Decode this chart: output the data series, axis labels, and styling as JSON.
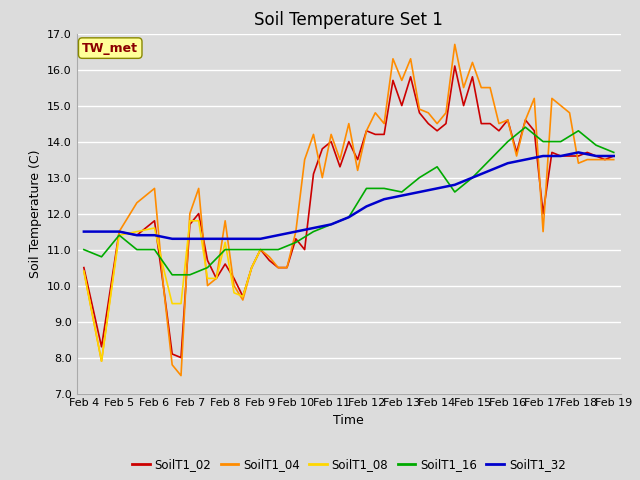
{
  "title": "Soil Temperature Set 1",
  "xlabel": "Time",
  "ylabel": "Soil Temperature (C)",
  "ylim": [
    7.0,
    17.0
  ],
  "yticks": [
    7.0,
    8.0,
    9.0,
    10.0,
    11.0,
    12.0,
    13.0,
    14.0,
    15.0,
    16.0,
    17.0
  ],
  "background_color": "#dcdcdc",
  "plot_bg_color": "#dcdcdc",
  "grid_color": "#ffffff",
  "annotation_label": "TW_met",
  "annotation_color": "#8b0000",
  "annotation_bg": "#ffff99",
  "series": {
    "SoilT1_02": {
      "color": "#cc0000",
      "linewidth": 1.2,
      "x": [
        0,
        0.5,
        1,
        1.5,
        2,
        2.25,
        2.5,
        2.75,
        3,
        3.25,
        3.5,
        3.75,
        4,
        4.25,
        4.5,
        4.75,
        5,
        5.25,
        5.5,
        5.75,
        6,
        6.25,
        6.5,
        6.75,
        7,
        7.25,
        7.5,
        7.75,
        8,
        8.25,
        8.5,
        8.75,
        9,
        9.25,
        9.5,
        9.75,
        10,
        10.25,
        10.5,
        10.75,
        11,
        11.25,
        11.5,
        11.75,
        12,
        12.25,
        12.5,
        12.75,
        13,
        13.25,
        13.5,
        13.75,
        14,
        14.25,
        14.5,
        14.75,
        15
      ],
      "y": [
        10.5,
        8.3,
        11.5,
        11.4,
        11.8,
        10.0,
        8.1,
        8.0,
        11.7,
        12.0,
        10.7,
        10.2,
        10.6,
        10.2,
        9.7,
        10.5,
        11.0,
        10.7,
        10.5,
        10.5,
        11.3,
        11.0,
        13.1,
        13.8,
        14.0,
        13.3,
        14.0,
        13.5,
        14.3,
        14.2,
        14.2,
        15.7,
        15.0,
        15.8,
        14.8,
        14.5,
        14.3,
        14.5,
        16.1,
        15.0,
        15.8,
        14.5,
        14.5,
        14.3,
        14.6,
        13.7,
        14.6,
        14.3,
        12.0,
        13.7,
        13.6,
        13.6,
        13.6,
        13.7,
        13.6,
        13.5,
        13.6
      ]
    },
    "SoilT1_04": {
      "color": "#ff8c00",
      "linewidth": 1.2,
      "x": [
        0,
        0.5,
        1,
        1.5,
        2,
        2.25,
        2.5,
        2.75,
        3,
        3.25,
        3.5,
        3.75,
        4,
        4.25,
        4.5,
        4.75,
        5,
        5.25,
        5.5,
        5.75,
        6,
        6.25,
        6.5,
        6.75,
        7,
        7.25,
        7.5,
        7.75,
        8,
        8.25,
        8.5,
        8.75,
        9,
        9.25,
        9.5,
        9.75,
        10,
        10.25,
        10.5,
        10.75,
        11,
        11.25,
        11.5,
        11.75,
        12,
        12.25,
        12.5,
        12.75,
        13,
        13.25,
        13.5,
        13.75,
        14,
        14.25,
        14.5,
        14.75,
        15
      ],
      "y": [
        10.4,
        7.9,
        11.5,
        12.3,
        12.7,
        10.0,
        7.8,
        7.5,
        12.0,
        12.7,
        10.0,
        10.2,
        11.8,
        10.0,
        9.6,
        10.5,
        11.0,
        10.8,
        10.5,
        10.5,
        11.5,
        13.5,
        14.2,
        13.0,
        14.2,
        13.5,
        14.5,
        13.2,
        14.3,
        14.8,
        14.5,
        16.3,
        15.7,
        16.3,
        14.9,
        14.8,
        14.5,
        14.8,
        16.7,
        15.5,
        16.2,
        15.5,
        15.5,
        14.5,
        14.6,
        13.6,
        14.6,
        15.2,
        11.5,
        15.2,
        15.0,
        14.8,
        13.4,
        13.5,
        13.5,
        13.5,
        13.5
      ]
    },
    "SoilT1_08": {
      "color": "#ffd700",
      "linewidth": 1.2,
      "x": [
        0,
        0.5,
        1,
        1.5,
        2,
        2.25,
        2.5,
        2.75,
        3,
        3.25,
        3.5,
        3.75,
        4,
        4.25,
        4.5,
        4.75,
        5
      ],
      "y": [
        10.4,
        7.9,
        11.4,
        11.5,
        11.6,
        10.5,
        9.5,
        9.5,
        11.8,
        11.8,
        10.2,
        10.2,
        11.2,
        9.8,
        9.7,
        10.5,
        11.0
      ]
    },
    "SoilT1_16": {
      "color": "#00aa00",
      "linewidth": 1.2,
      "x": [
        0,
        0.5,
        1,
        1.5,
        2,
        2.5,
        3,
        3.5,
        4,
        4.5,
        5,
        5.5,
        6,
        6.5,
        7,
        7.5,
        8,
        8.5,
        9,
        9.5,
        10,
        10.5,
        11,
        11.5,
        12,
        12.5,
        13,
        13.5,
        14,
        14.5,
        15
      ],
      "y": [
        11.0,
        10.8,
        11.4,
        11.0,
        11.0,
        10.3,
        10.3,
        10.5,
        11.0,
        11.0,
        11.0,
        11.0,
        11.2,
        11.5,
        11.7,
        11.9,
        12.7,
        12.7,
        12.6,
        13.0,
        13.3,
        12.6,
        13.0,
        13.5,
        14.0,
        14.4,
        14.0,
        14.0,
        14.3,
        13.9,
        13.7
      ]
    },
    "SoilT1_32": {
      "color": "#0000cc",
      "linewidth": 1.8,
      "x": [
        0,
        0.5,
        1,
        1.5,
        2,
        2.5,
        3,
        3.5,
        4,
        4.5,
        5,
        5.5,
        6,
        6.5,
        7,
        7.5,
        8,
        8.5,
        9,
        9.5,
        10,
        10.5,
        11,
        11.5,
        12,
        12.5,
        13,
        13.5,
        14,
        14.5,
        15
      ],
      "y": [
        11.5,
        11.5,
        11.5,
        11.4,
        11.4,
        11.3,
        11.3,
        11.3,
        11.3,
        11.3,
        11.3,
        11.4,
        11.5,
        11.6,
        11.7,
        11.9,
        12.2,
        12.4,
        12.5,
        12.6,
        12.7,
        12.8,
        13.0,
        13.2,
        13.4,
        13.5,
        13.6,
        13.6,
        13.7,
        13.6,
        13.6
      ]
    }
  },
  "xtick_labels": [
    "Feb 4",
    "Feb 5",
    "Feb 6",
    "Feb 7",
    "Feb 8",
    "Feb 9",
    "Feb 10",
    "Feb 11",
    "Feb 12",
    "Feb 13",
    "Feb 14",
    "Feb 15",
    "Feb 16",
    "Feb 17",
    "Feb 18",
    "Feb 19"
  ],
  "xtick_positions": [
    0,
    1,
    2,
    3,
    4,
    5,
    6,
    7,
    8,
    9,
    10,
    11,
    12,
    13,
    14,
    15
  ],
  "legend_order": [
    "SoilT1_02",
    "SoilT1_04",
    "SoilT1_08",
    "SoilT1_16",
    "SoilT1_32"
  ],
  "title_fontsize": 12,
  "axis_label_fontsize": 9,
  "tick_fontsize": 8
}
